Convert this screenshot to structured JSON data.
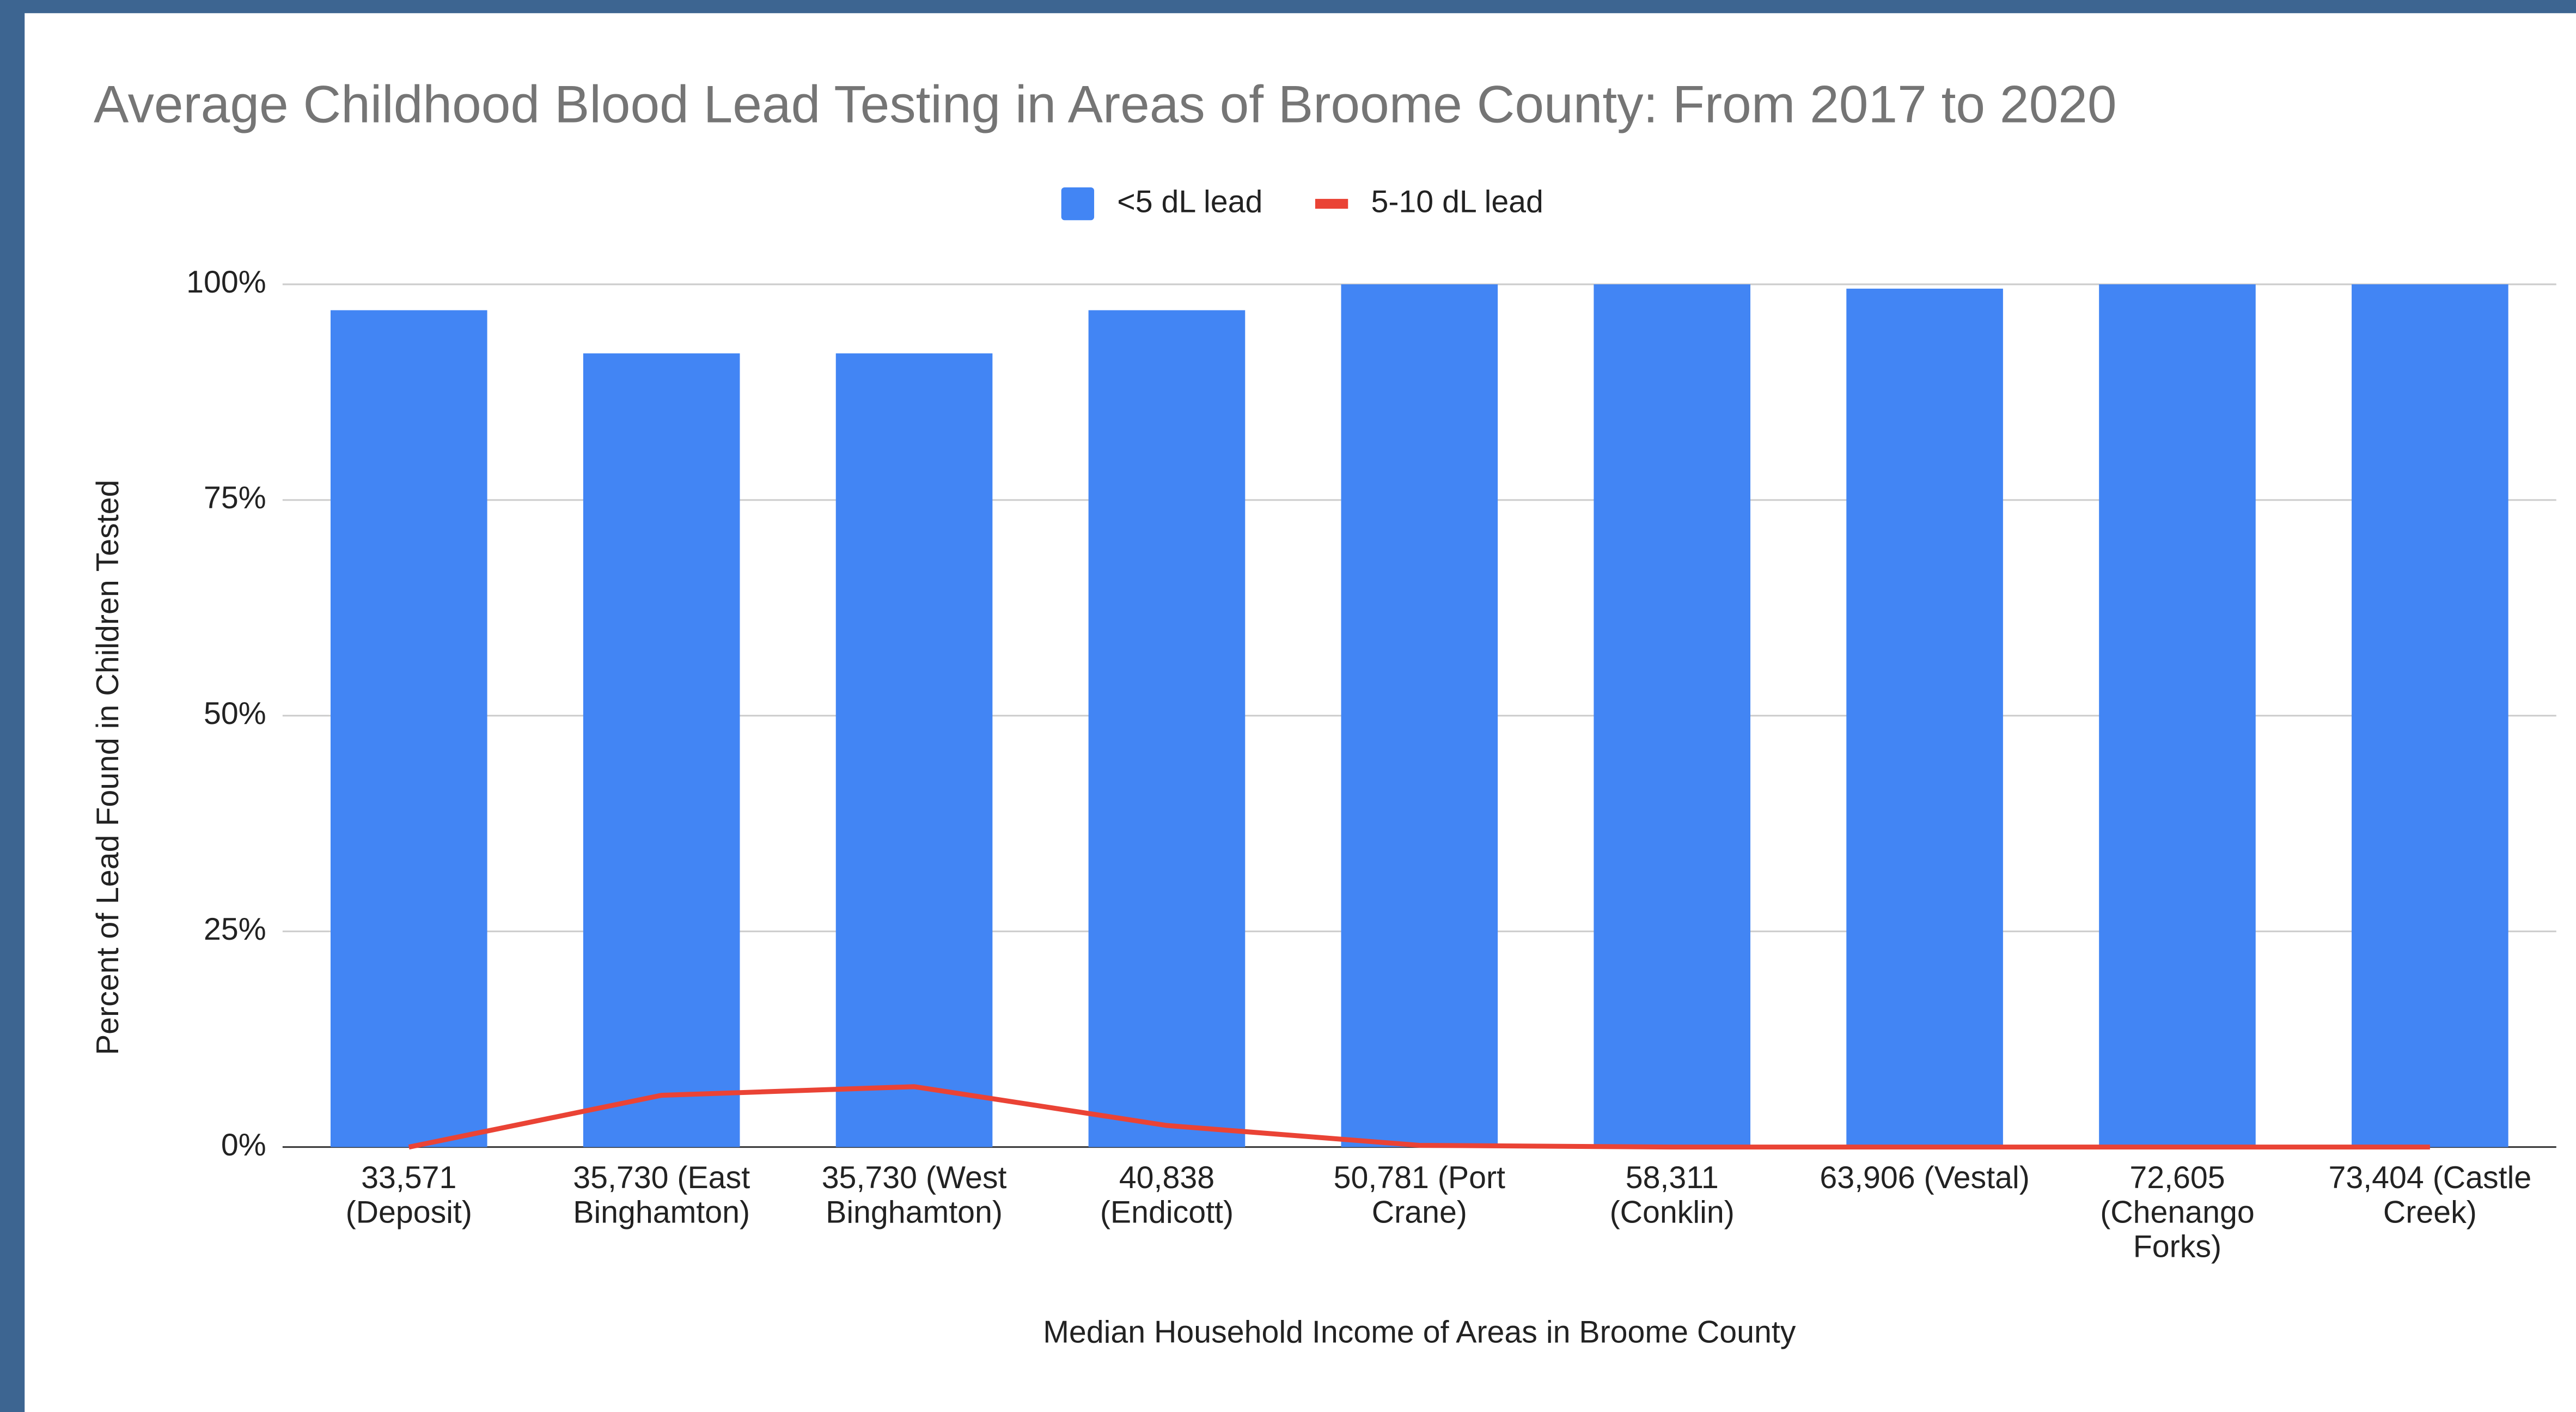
{
  "chart_data": {
    "type": "bar",
    "title": "Average Childhood Blood Lead Testing in Areas of Broome County: From 2017 to 2020",
    "x_label": "Median Household Income of Areas in Broome County",
    "y_label": "Percent of Lead Found in Children Tested",
    "categories": [
      "33,571 (Deposit)",
      "35,730 (East Binghamton)",
      "35,730 (West Binghamton)",
      "40,838 (Endicott)",
      "50,781 (Port Crane)",
      "58,311 (Conklin)",
      "63,906 (Vestal)",
      "72,605 (Chenango Forks)",
      "73,404 (Castle Creek)"
    ],
    "series": [
      {
        "name": "<5 dL lead",
        "type": "bar",
        "color": "#4285f4",
        "values": [
          97,
          92,
          92,
          97,
          100,
          100,
          99.5,
          100,
          100
        ]
      },
      {
        "name": "5-10 dL lead",
        "type": "line",
        "color": "#ea4335",
        "values": [
          0,
          6,
          7,
          2.5,
          0.2,
          0,
          0,
          0,
          0
        ]
      }
    ],
    "ylim": [
      0,
      100
    ],
    "yticks": [
      {
        "value": 0,
        "label": "0%"
      },
      {
        "value": 25,
        "label": "25%"
      },
      {
        "value": 50,
        "label": "50%"
      },
      {
        "value": 75,
        "label": "75%"
      },
      {
        "value": 100,
        "label": "100%"
      }
    ],
    "grid": true,
    "legend": "top"
  }
}
